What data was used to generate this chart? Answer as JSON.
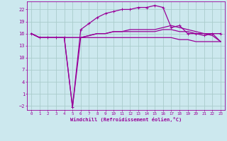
{
  "bg_color": "#cce8ee",
  "grid_color": "#aacccc",
  "line_color": "#990099",
  "xlabel": "Windchill (Refroidissement éolien,°C)",
  "xlabel_color": "#990099",
  "tick_color": "#990099",
  "ylim": [
    -3,
    24
  ],
  "xlim": [
    -0.5,
    23.5
  ],
  "yticks": [
    -2,
    1,
    4,
    7,
    10,
    13,
    16,
    19,
    22
  ],
  "xticks": [
    0,
    1,
    2,
    3,
    4,
    5,
    6,
    7,
    8,
    9,
    10,
    11,
    12,
    13,
    14,
    15,
    16,
    17,
    18,
    19,
    20,
    21,
    22,
    23
  ],
  "curve1_x": [
    0,
    1,
    2,
    3,
    4,
    5,
    6,
    7,
    8,
    9,
    10,
    11,
    12,
    13,
    14,
    15,
    16,
    17,
    18,
    19,
    20,
    21,
    22,
    23
  ],
  "curve1_y": [
    16.0,
    15.0,
    15.0,
    15.0,
    15.0,
    -2.3,
    17.0,
    18.5,
    20.0,
    21.0,
    21.5,
    22.0,
    22.0,
    22.5,
    22.5,
    23.0,
    22.5,
    17.5,
    18.0,
    16.0,
    16.0,
    15.5,
    16.0,
    16.0
  ],
  "curve2_x": [
    0,
    1,
    2,
    3,
    4,
    5,
    6,
    7,
    8,
    9,
    10,
    11,
    12,
    13,
    14,
    15,
    16,
    17,
    18,
    19,
    20,
    21,
    22,
    23
  ],
  "curve2_y": [
    16.0,
    15.0,
    15.0,
    15.0,
    15.0,
    -2.3,
    15.0,
    15.5,
    16.0,
    16.0,
    16.5,
    16.5,
    17.0,
    17.0,
    17.0,
    17.0,
    17.5,
    18.0,
    17.5,
    17.0,
    16.5,
    16.0,
    15.5,
    14.0
  ],
  "curve3_x": [
    0,
    1,
    2,
    3,
    4,
    5,
    6,
    7,
    8,
    9,
    10,
    11,
    12,
    13,
    14,
    15,
    16,
    17,
    18,
    19,
    20,
    21,
    22,
    23
  ],
  "curve3_y": [
    16.0,
    15.0,
    15.0,
    15.0,
    15.0,
    15.0,
    15.0,
    15.0,
    15.0,
    15.0,
    15.0,
    15.0,
    15.0,
    15.0,
    15.0,
    15.0,
    15.0,
    15.0,
    14.5,
    14.5,
    14.0,
    14.0,
    14.0,
    14.0
  ],
  "curve4_x": [
    0,
    1,
    2,
    3,
    4,
    5,
    6,
    7,
    8,
    9,
    10,
    11,
    12,
    13,
    14,
    15,
    16,
    17,
    18,
    19,
    20,
    21,
    22,
    23
  ],
  "curve4_y": [
    16.0,
    15.0,
    15.0,
    15.0,
    15.0,
    15.0,
    15.0,
    15.5,
    16.0,
    16.0,
    16.5,
    16.5,
    16.5,
    16.5,
    16.5,
    16.5,
    17.0,
    17.0,
    16.5,
    16.5,
    16.0,
    16.0,
    16.0,
    14.0
  ]
}
